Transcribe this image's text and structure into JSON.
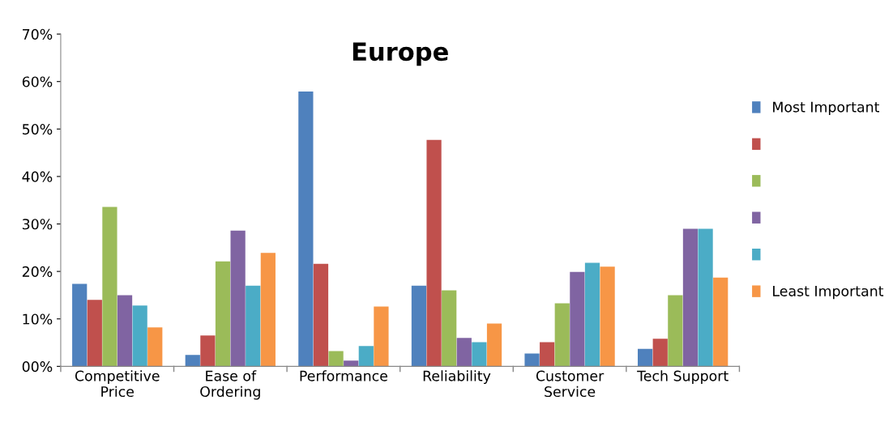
{
  "chart_data": {
    "type": "bar",
    "title": "Europe",
    "categories": [
      "Competitive\nPrice",
      "Ease of\nOrdering",
      "Performance",
      "Reliability",
      "Customer\nService",
      "Tech Support"
    ],
    "series": [
      {
        "name": "Most Important",
        "color": "#4f81bd",
        "values": [
          17.4,
          2.4,
          57.9,
          17,
          2.7,
          3.7
        ]
      },
      {
        "color": "#c0504d",
        "values": [
          14,
          6.5,
          21.6,
          47.7,
          5.1,
          5.8
        ]
      },
      {
        "color": "#9bbb59",
        "values": [
          33.6,
          22.1,
          3.2,
          16,
          13.3,
          15
        ]
      },
      {
        "color": "#8064a2",
        "values": [
          15,
          28.6,
          1.2,
          6,
          19.9,
          29
        ]
      },
      {
        "color": "#4bacc6",
        "values": [
          12.8,
          17,
          4.3,
          5.1,
          21.8,
          29
        ]
      },
      {
        "name": "Least Important",
        "color": "#f79646",
        "values": [
          8.2,
          23.9,
          12.6,
          9,
          21,
          18.7
        ]
      }
    ],
    "ylim": [
      0,
      70
    ],
    "yticks": [
      {
        "value": 0,
        "label": "00%"
      },
      {
        "value": 10,
        "label": "10%"
      },
      {
        "value": 20,
        "label": "20%"
      },
      {
        "value": 30,
        "label": "30%"
      },
      {
        "value": 40,
        "label": "40%"
      },
      {
        "value": 50,
        "label": "50%"
      },
      {
        "value": 60,
        "label": "60%"
      },
      {
        "value": 70,
        "label": "70%"
      }
    ],
    "grid": false,
    "legend": "right"
  }
}
